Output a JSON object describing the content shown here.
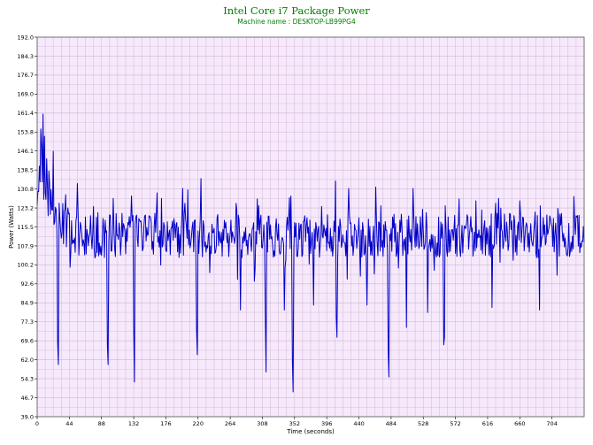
{
  "chart_data": {
    "type": "line",
    "title": "Intel Core i7 Package Power",
    "subtitle": "Machine name : DESKTOP-LB99PG4",
    "xlabel": "Time (seconds)",
    "ylabel": "Power (Watts)",
    "xlim": [
      0,
      748
    ],
    "ylim": [
      39.0,
      192.0
    ],
    "x_ticks": [
      0,
      44,
      88,
      132,
      176,
      220,
      264,
      308,
      352,
      396,
      440,
      484,
      528,
      572,
      616,
      660,
      704
    ],
    "y_ticks": [
      "39.0",
      "46.7",
      "54.3",
      "62.0",
      "69.6",
      "77.3",
      "84.9",
      "92.6",
      "100.2",
      "107.9",
      "115.5",
      "123.2",
      "130.8",
      "138.5",
      "146.1",
      "153.8",
      "161.4",
      "169.0",
      "176.7",
      "184.3",
      "192.0"
    ],
    "grid": true,
    "colors": {
      "title": "#008000",
      "subtitle": "#008000",
      "plot_background": "#f6e9fb",
      "grid": "#d3b6d3",
      "line": "#0000c8"
    },
    "series": [
      {
        "baseline_mean": 112,
        "noise_amplitude": 9,
        "samples_per_second": 1,
        "dips": [
          {
            "x": 28,
            "y": 69
          },
          {
            "x": 29,
            "y": 60
          },
          {
            "x": 96,
            "y": 68
          },
          {
            "x": 97,
            "y": 60
          },
          {
            "x": 132,
            "y": 75
          },
          {
            "x": 133,
            "y": 53
          },
          {
            "x": 218,
            "y": 74
          },
          {
            "x": 219,
            "y": 64
          },
          {
            "x": 278,
            "y": 82
          },
          {
            "x": 312,
            "y": 80
          },
          {
            "x": 313,
            "y": 57
          },
          {
            "x": 338,
            "y": 82
          },
          {
            "x": 349,
            "y": 62
          },
          {
            "x": 350,
            "y": 49
          },
          {
            "x": 378,
            "y": 84
          },
          {
            "x": 409,
            "y": 79
          },
          {
            "x": 410,
            "y": 71
          },
          {
            "x": 451,
            "y": 84
          },
          {
            "x": 480,
            "y": 66
          },
          {
            "x": 481,
            "y": 55
          },
          {
            "x": 505,
            "y": 75
          },
          {
            "x": 534,
            "y": 81
          },
          {
            "x": 556,
            "y": 68
          },
          {
            "x": 557,
            "y": 71
          },
          {
            "x": 622,
            "y": 83
          },
          {
            "x": 687,
            "y": 82
          }
        ],
        "peaks": [
          {
            "x": 3,
            "y": 140
          },
          {
            "x": 5,
            "y": 155
          },
          {
            "x": 6,
            "y": 148
          },
          {
            "x": 8,
            "y": 161
          },
          {
            "x": 10,
            "y": 152
          },
          {
            "x": 13,
            "y": 143
          },
          {
            "x": 16,
            "y": 138
          },
          {
            "x": 22,
            "y": 146
          },
          {
            "x": 55,
            "y": 133
          },
          {
            "x": 104,
            "y": 127
          },
          {
            "x": 129,
            "y": 128
          },
          {
            "x": 170,
            "y": 127
          },
          {
            "x": 199,
            "y": 131
          },
          {
            "x": 224,
            "y": 135
          },
          {
            "x": 272,
            "y": 125
          },
          {
            "x": 303,
            "y": 124
          },
          {
            "x": 347,
            "y": 128
          },
          {
            "x": 408,
            "y": 134
          },
          {
            "x": 426,
            "y": 131
          },
          {
            "x": 470,
            "y": 124
          },
          {
            "x": 514,
            "y": 131
          },
          {
            "x": 534,
            "y": 125
          },
          {
            "x": 558,
            "y": 124
          },
          {
            "x": 600,
            "y": 126
          },
          {
            "x": 631,
            "y": 127
          },
          {
            "x": 660,
            "y": 126
          },
          {
            "x": 688,
            "y": 124
          },
          {
            "x": 712,
            "y": 123
          }
        ]
      }
    ]
  }
}
